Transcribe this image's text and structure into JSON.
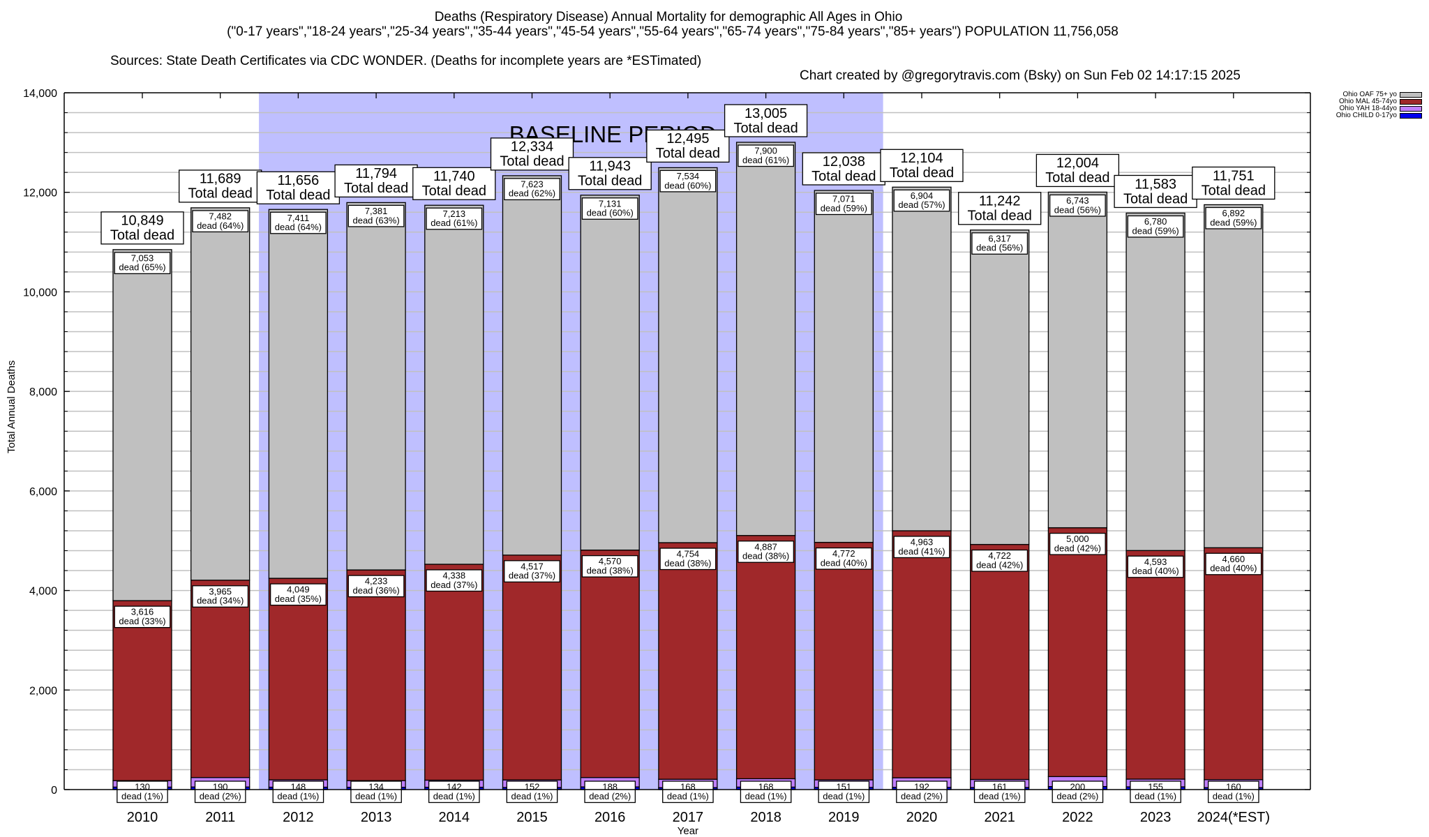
{
  "header": {
    "title_line1": "Deaths (Respiratory Disease) Annual Mortality for demographic All Ages in Ohio",
    "title_line2": "(\"0-17 years\",\"18-24 years\",\"25-34 years\",\"35-44 years\",\"45-54 years\",\"55-64 years\",\"65-74 years\",\"75-84 years\",\"85+ years\") POPULATION 11,756,058",
    "sources": "Sources: State Death Certificates via CDC WONDER. (Deaths for incomplete years are *ESTimated)",
    "credit": "Chart created by @gregorytravis.com (Bsky) on Sun Feb 02 14:17:15 2025"
  },
  "chart_data": {
    "type": "bar",
    "stacked": true,
    "title": "Deaths (Respiratory Disease) Annual Mortality for demographic All Ages in Ohio",
    "xlabel": "Year",
    "ylabel": "Total Annual Deaths",
    "ylim": [
      0,
      14000
    ],
    "yticks": [
      0,
      2000,
      4000,
      6000,
      8000,
      10000,
      12000,
      14000
    ],
    "ytick_labels": [
      "0",
      "2,000",
      "4,000",
      "6,000",
      "8,000",
      "10,000",
      "12,000",
      "14,000"
    ],
    "grid": true,
    "grid_step": 400,
    "legend_position": "top-right",
    "categories": [
      "2010",
      "2011",
      "2012",
      "2013",
      "2014",
      "2015",
      "2016",
      "2017",
      "2018",
      "2019",
      "2020",
      "2021",
      "2022",
      "2023",
      "2024(*EST)"
    ],
    "series": [
      {
        "name": "Ohio CHILD 0-17yo",
        "color": "#0000ee",
        "values": [
          50,
          52,
          48,
          46,
          47,
          42,
          54,
          39,
          50,
          44,
          45,
          42,
          61,
          55,
          39
        ]
      },
      {
        "name": "Ohio YAH 18-44yo",
        "color": "#c080ff",
        "values": [
          130,
          190,
          148,
          134,
          142,
          152,
          188,
          168,
          168,
          151,
          192,
          161,
          200,
          155,
          160
        ],
        "labels": [
          "130\ndead (1%)",
          "190\ndead (2%)",
          "148\ndead (1%)",
          "134\ndead (1%)",
          "142\ndead (1%)",
          "152\ndead (1%)",
          "188\ndead (2%)",
          "168\ndead (1%)",
          "168\ndead (1%)",
          "151\ndead (1%)",
          "192\ndead (2%)",
          "161\ndead (1%)",
          "200\ndead (2%)",
          "155\ndead (1%)",
          "160\ndead (1%)"
        ]
      },
      {
        "name": "Ohio MAL 45-74yo",
        "color": "#a0282a",
        "values": [
          3616,
          3965,
          4049,
          4233,
          4338,
          4517,
          4570,
          4754,
          4887,
          4772,
          4963,
          4722,
          5000,
          4593,
          4660
        ],
        "labels": [
          "3,616\ndead (33%)",
          "3,965\ndead (34%)",
          "4,049\ndead (35%)",
          "4,233\ndead (36%)",
          "4,338\ndead (37%)",
          "4,517\ndead (37%)",
          "4,570\ndead (38%)",
          "4,754\ndead (38%)",
          "4,887\ndead (38%)",
          "4,772\ndead (40%)",
          "4,963\ndead (41%)",
          "4,722\ndead (42%)",
          "5,000\ndead (42%)",
          "4,593\ndead (40%)",
          "4,660\ndead (40%)"
        ]
      },
      {
        "name": "Ohio OAF 75+ yo",
        "color": "#c0c0c0",
        "values": [
          7053,
          7482,
          7411,
          7381,
          7213,
          7623,
          7131,
          7534,
          7900,
          7071,
          6904,
          6317,
          6743,
          6780,
          6892
        ],
        "labels": [
          "7,053\ndead (65%)",
          "7,482\ndead (64%)",
          "7,411\ndead (64%)",
          "7,381\ndead (63%)",
          "7,213\ndead (61%)",
          "7,623\ndead (62%)",
          "7,131\ndead (60%)",
          "7,534\ndead (60%)",
          "7,900\ndead (61%)",
          "7,071\ndead (59%)",
          "6,904\ndead (57%)",
          "6,317\ndead (56%)",
          "6,743\ndead (56%)",
          "6,780\ndead (59%)",
          "6,892\ndead (59%)"
        ]
      }
    ],
    "totals": [
      10849,
      11689,
      11656,
      11794,
      11740,
      12334,
      11943,
      12495,
      13005,
      12038,
      12104,
      11242,
      12004,
      11583,
      11751
    ],
    "total_labels": [
      "10,849",
      "11,689",
      "11,656",
      "11,794",
      "11,740",
      "12,334",
      "11,943",
      "12,495",
      "13,005",
      "12,038",
      "12,104",
      "11,242",
      "12,004",
      "11,583",
      "11,751"
    ],
    "total_suffix": "Total dead",
    "annotation": {
      "text": "BASELINE PERIOD",
      "from_category": "2012",
      "to_category": "2019",
      "color": "#bfbfff"
    }
  },
  "legend": {
    "items": [
      {
        "label": "Ohio OAF 75+ yo",
        "color": "#c0c0c0"
      },
      {
        "label": "Ohio MAL 45-74yo",
        "color": "#a0282a"
      },
      {
        "label": "Ohio YAH 18-44yo",
        "color": "#c080ff"
      },
      {
        "label": "Ohio CHILD 0-17yo",
        "color": "#0000ee"
      }
    ]
  }
}
